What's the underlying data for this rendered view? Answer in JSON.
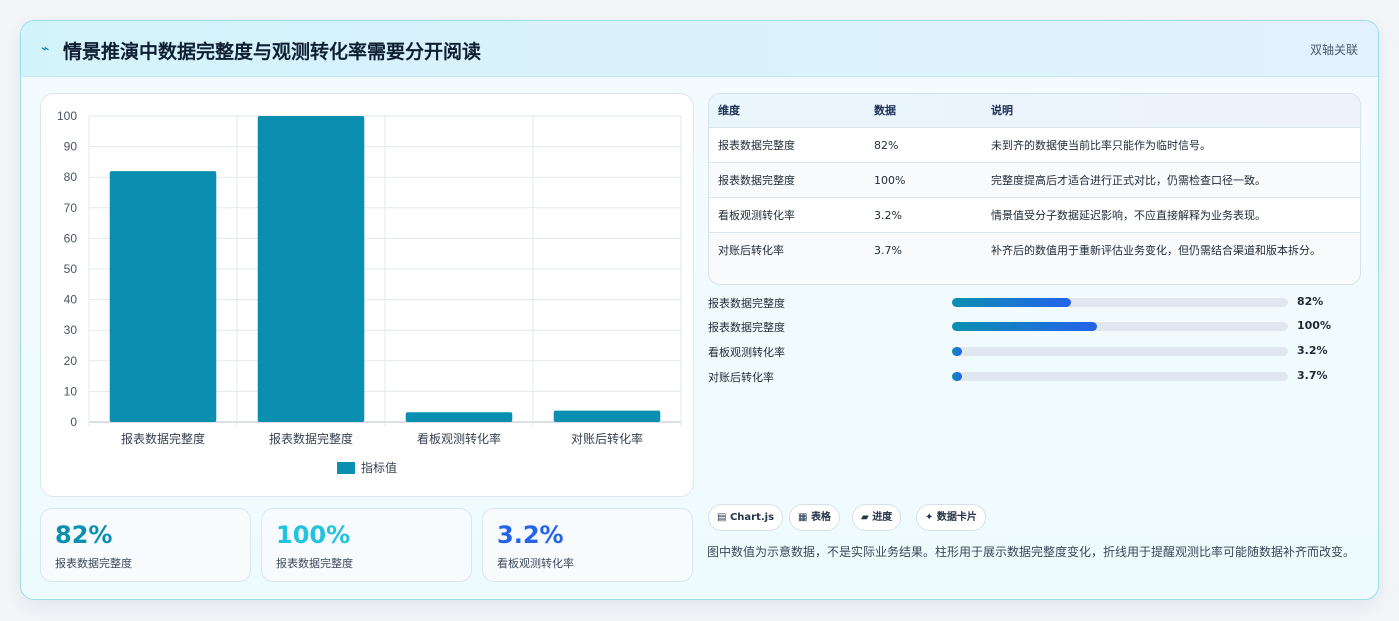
{
  "header": {
    "icon": "bolt-icon",
    "title": "情景推演中数据完整度与观测转化率需要分开阅读",
    "badge": "双轴关联"
  },
  "chart_data": {
    "type": "bar",
    "categories": [
      "报表数据完整度",
      "报表数据完整度",
      "看板观测转化率",
      "对账后转化率"
    ],
    "series": [
      {
        "name": "指标值",
        "values": [
          82,
          100,
          3.2,
          3.7
        ],
        "color": "#0b8fb1"
      }
    ],
    "yticks": [
      0,
      10,
      20,
      30,
      40,
      50,
      60,
      70,
      80,
      90,
      100
    ],
    "ylim": [
      0,
      100
    ],
    "grid": true,
    "legend": "bottom"
  },
  "kpis": [
    {
      "value": "82%",
      "label": "报表数据完整度",
      "color": "#0b8fb1"
    },
    {
      "value": "100%",
      "label": "报表数据完整度",
      "color": "#22c3dc"
    },
    {
      "value": "3.2%",
      "label": "看板观测转化率",
      "color": "#2563eb"
    }
  ],
  "table": {
    "headers": [
      "维度",
      "数据",
      "说明"
    ],
    "rows": [
      [
        "报表数据完整度",
        "82%",
        "未到齐的数据使当前比率只能作为临时信号。"
      ],
      [
        "报表数据完整度",
        "100%",
        "完整度提高后才适合进行正式对比，仍需检查口径一致。"
      ],
      [
        "看板观测转化率",
        "3.2%",
        "情景值受分子数据延迟影响，不应直接解释为业务表现。"
      ],
      [
        "对账后转化率",
        "3.7%",
        "补齐后的数值用于重新评估业务变化，但仍需结合渠道和版本拆分。"
      ]
    ]
  },
  "progress": [
    {
      "label": "报表数据完整度",
      "value": "82%",
      "fraction": 0.355
    },
    {
      "label": "报表数据完整度",
      "value": "100%",
      "fraction": 0.433
    },
    {
      "label": "看板观测转化率",
      "value": "3.2%",
      "fraction": 0.03
    },
    {
      "label": "对账后转化率",
      "value": "3.7%",
      "fraction": 0.03
    }
  ],
  "chips": [
    {
      "icon": "chart-icon",
      "glyph": "▤",
      "label": "Chart.js"
    },
    {
      "icon": "table-icon",
      "glyph": "▦",
      "label": "表格"
    },
    {
      "icon": "progress-icon",
      "glyph": "▰",
      "label": "进度"
    },
    {
      "icon": "sparkle-icon",
      "glyph": "✦",
      "label": "数据卡片"
    }
  ],
  "note": "图中数值为示意数据，不是实际业务结果。柱形用于展示数据完整度变化，折线用于提醒观测比率可能随数据补齐而改变。"
}
